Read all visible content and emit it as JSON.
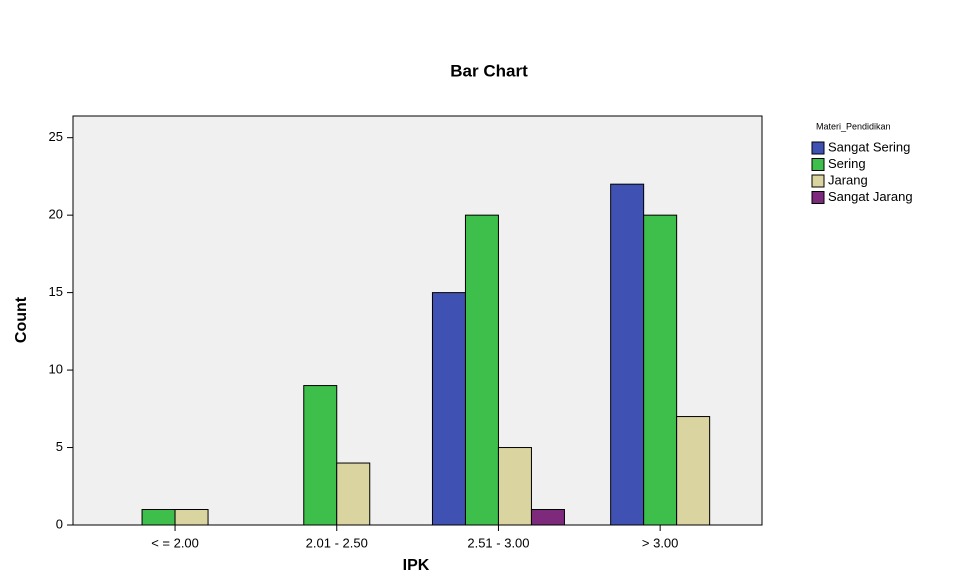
{
  "chart_data": {
    "type": "bar",
    "title": "Bar Chart",
    "x_label": "IPK",
    "y_label": "Count",
    "categories": [
      "< = 2.00",
      "2.01 - 2.50",
      "2.51 - 3.00",
      "> 3.00"
    ],
    "legend_title": "Materi_Pendidikan",
    "legend": "right",
    "series": [
      {
        "name": "Sangat Sering",
        "color": "#3f52b3",
        "values": [
          null,
          null,
          15,
          22
        ]
      },
      {
        "name": "Sering",
        "color": "#3ebf4b",
        "values": [
          1,
          9,
          20,
          20
        ]
      },
      {
        "name": "Jarang",
        "color": "#dad5a0",
        "values": [
          1,
          4,
          5,
          7
        ]
      },
      {
        "name": "Sangat Jarang",
        "color": "#7d2a7d",
        "values": [
          null,
          null,
          1,
          null
        ]
      }
    ],
    "ylim": [
      0,
      26.4
    ],
    "yticks": [
      0,
      5,
      10,
      15,
      20,
      25
    ]
  }
}
